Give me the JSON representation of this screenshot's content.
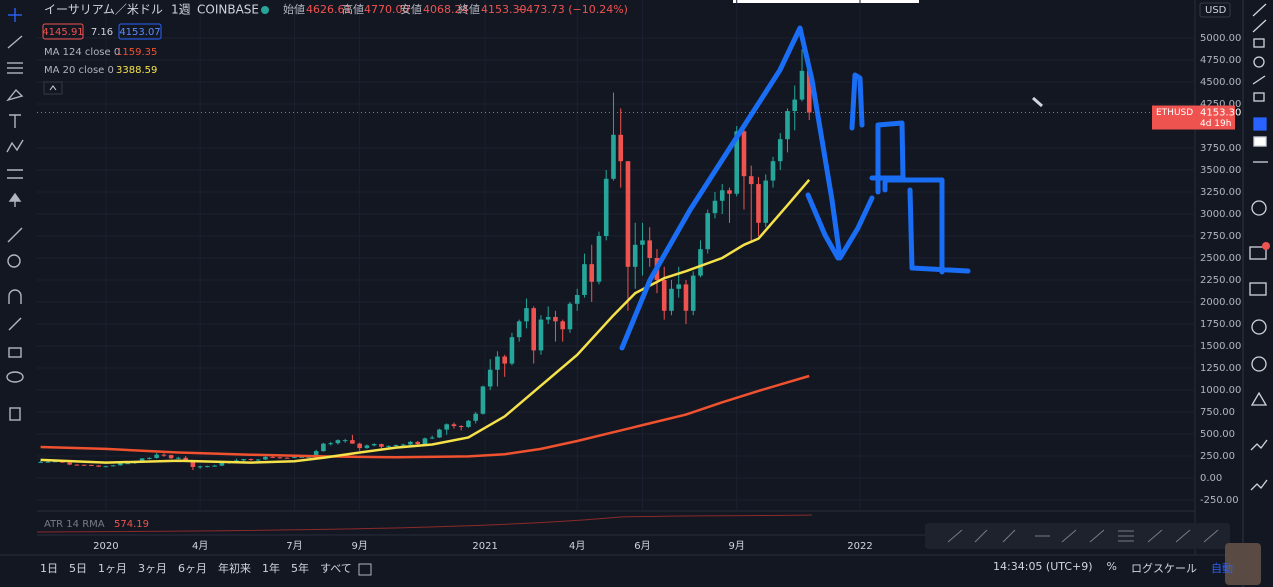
{
  "header": {
    "symbol": "イーサリアム／米ドル",
    "interval": "1週",
    "exchange": "COINBASE",
    "open_label": "始値",
    "open": "4626.61",
    "high_label": "高値",
    "high": "4770.00",
    "low_label": "安値",
    "low": "4068.24",
    "close_label": "終値",
    "close": "4153.30",
    "change": "−473.73 (−10.24%)",
    "bid": "4145.91",
    "spread": "7.16",
    "ask": "4153.07"
  },
  "chart_data": {
    "type": "candlestick",
    "grid": true,
    "xlim": [
      -9.5,
      150.2
    ],
    "xticks": [
      {
        "value": 0,
        "label": "2020"
      },
      {
        "value": 13,
        "label": "4月"
      },
      {
        "value": 26,
        "label": "7月"
      },
      {
        "value": 35,
        "label": "9月"
      },
      {
        "value": 52.3,
        "label": "2021"
      },
      {
        "value": 65,
        "label": "4月"
      },
      {
        "value": 74,
        "label": "6月"
      },
      {
        "value": 87,
        "label": "9月"
      },
      {
        "value": 104,
        "label": "2022"
      }
    ],
    "ylim": [
      -364,
      5432
    ],
    "yticks": [
      {
        "value": 5000,
        "label": "5000.00"
      },
      {
        "value": 4750,
        "label": "4750.00"
      },
      {
        "value": 4500,
        "label": "4500.00"
      },
      {
        "value": 4250,
        "label": "4250.00"
      },
      {
        "value": 3750,
        "label": "3750.00"
      },
      {
        "value": 3500,
        "label": "3500.00"
      },
      {
        "value": 3250,
        "label": "3250.00"
      },
      {
        "value": 3000,
        "label": "3000.00"
      },
      {
        "value": 2750,
        "label": "2750.00"
      },
      {
        "value": 2500,
        "label": "2500.00"
      },
      {
        "value": 2250,
        "label": "2250.00"
      },
      {
        "value": 2000,
        "label": "2000.00"
      },
      {
        "value": 1750,
        "label": "1750.00"
      },
      {
        "value": 1500,
        "label": "1500.00"
      },
      {
        "value": 1250,
        "label": "1250.00"
      },
      {
        "value": 1000,
        "label": "1000.00"
      },
      {
        "value": 750,
        "label": "750.00"
      },
      {
        "value": 500,
        "label": "500.00"
      },
      {
        "value": 250,
        "label": "250.00"
      },
      {
        "value": 0,
        "label": "0.00"
      },
      {
        "value": -250,
        "label": "-250.00"
      }
    ],
    "candles": {
      "up_color": "#26a69a",
      "down_color": "#ef5350",
      "x": [
        -9,
        -8,
        -7,
        -6,
        -5,
        -4,
        -3,
        -2,
        -1,
        0,
        1,
        2,
        3,
        4,
        5,
        6,
        7,
        8,
        9,
        10,
        11,
        12,
        13,
        14,
        15,
        16,
        17,
        18,
        19,
        20,
        21,
        22,
        23,
        24,
        25,
        26,
        27,
        28,
        29,
        30,
        31,
        32,
        33,
        34,
        35,
        36,
        37,
        38,
        39,
        40,
        41,
        42,
        43,
        44,
        45,
        46,
        47,
        48,
        49,
        50,
        51,
        52,
        53,
        54,
        55,
        56,
        57,
        58,
        59,
        60,
        61,
        62,
        63,
        64,
        65,
        66,
        67,
        68,
        69,
        70,
        71,
        72,
        73,
        74,
        75,
        76,
        77,
        78,
        79,
        80,
        81,
        82,
        83,
        84,
        85,
        86,
        87,
        88,
        89,
        90,
        91,
        92,
        93,
        94,
        95,
        96,
        97
      ],
      "ohlc": [
        [
          180,
          195,
          175,
          183
        ],
        [
          183,
          190,
          178,
          185
        ],
        [
          185,
          195,
          180,
          190
        ],
        [
          190,
          192,
          170,
          175
        ],
        [
          175,
          178,
          145,
          152
        ],
        [
          152,
          155,
          140,
          150
        ],
        [
          150,
          152,
          140,
          148
        ],
        [
          148,
          150,
          138,
          142
        ],
        [
          142,
          145,
          125,
          128
        ],
        [
          128,
          140,
          125,
          134
        ],
        [
          134,
          146,
          130,
          144
        ],
        [
          144,
          170,
          140,
          166
        ],
        [
          166,
          175,
          160,
          168
        ],
        [
          168,
          185,
          160,
          180
        ],
        [
          180,
          225,
          175,
          223
        ],
        [
          223,
          235,
          210,
          228
        ],
        [
          228,
          285,
          220,
          265
        ],
        [
          265,
          280,
          240,
          260
        ],
        [
          260,
          265,
          215,
          225
        ],
        [
          225,
          240,
          215,
          230
        ],
        [
          230,
          250,
          195,
          200
        ],
        [
          200,
          200,
          90,
          125
        ],
        [
          125,
          140,
          105,
          132
        ],
        [
          132,
          140,
          120,
          135
        ],
        [
          135,
          150,
          130,
          140
        ],
        [
          140,
          175,
          135,
          170
        ],
        [
          170,
          190,
          160,
          185
        ],
        [
          185,
          220,
          175,
          200
        ],
        [
          200,
          215,
          180,
          215
        ],
        [
          215,
          220,
          195,
          205
        ],
        [
          205,
          215,
          190,
          210
        ],
        [
          210,
          245,
          205,
          240
        ],
        [
          240,
          250,
          230,
          235
        ],
        [
          235,
          240,
          220,
          230
        ],
        [
          230,
          235,
          220,
          228
        ],
        [
          228,
          245,
          225,
          240
        ],
        [
          240,
          245,
          235,
          240
        ],
        [
          240,
          245,
          230,
          240
        ],
        [
          240,
          320,
          238,
          305
        ],
        [
          305,
          400,
          300,
          390
        ],
        [
          390,
          410,
          370,
          395
        ],
        [
          395,
          440,
          380,
          430
        ],
        [
          430,
          445,
          400,
          430
        ],
        [
          430,
          490,
          390,
          390
        ],
        [
          390,
          400,
          310,
          340
        ],
        [
          340,
          380,
          330,
          370
        ],
        [
          370,
          395,
          360,
          385
        ],
        [
          385,
          390,
          330,
          355
        ],
        [
          355,
          370,
          340,
          365
        ],
        [
          365,
          380,
          350,
          375
        ],
        [
          375,
          390,
          360,
          380
        ],
        [
          380,
          420,
          375,
          410
        ],
        [
          410,
          420,
          370,
          385
        ],
        [
          385,
          460,
          380,
          450
        ],
        [
          450,
          480,
          440,
          460
        ],
        [
          460,
          560,
          455,
          550
        ],
        [
          550,
          620,
          490,
          610
        ],
        [
          610,
          630,
          560,
          590
        ],
        [
          590,
          600,
          540,
          580
        ],
        [
          580,
          660,
          570,
          650
        ],
        [
          650,
          750,
          620,
          730
        ],
        [
          730,
          1050,
          720,
          1040
        ],
        [
          1040,
          1350,
          1000,
          1230
        ],
        [
          1230,
          1440,
          1040,
          1380
        ],
        [
          1380,
          1400,
          1150,
          1300
        ],
        [
          1300,
          1650,
          1280,
          1600
        ],
        [
          1600,
          1800,
          1550,
          1780
        ],
        [
          1780,
          2040,
          1700,
          1930
        ],
        [
          1930,
          1950,
          1300,
          1450
        ],
        [
          1450,
          1850,
          1400,
          1800
        ],
        [
          1800,
          1950,
          1750,
          1830
        ],
        [
          1830,
          1900,
          1550,
          1780
        ],
        [
          1780,
          1800,
          1550,
          1690
        ],
        [
          1690,
          2000,
          1650,
          1980
        ],
        [
          1980,
          2150,
          1900,
          2080
        ],
        [
          2080,
          2550,
          2050,
          2430
        ],
        [
          2430,
          2650,
          2000,
          2230
        ],
        [
          2230,
          2800,
          2200,
          2750
        ],
        [
          2750,
          3500,
          2700,
          3400
        ],
        [
          3400,
          4380,
          3380,
          3900
        ],
        [
          3900,
          4200,
          3300,
          3600
        ],
        [
          3600,
          3600,
          1900,
          2400
        ],
        [
          2400,
          2900,
          2150,
          2650
        ],
        [
          2650,
          2900,
          2300,
          2700
        ],
        [
          2700,
          2850,
          2400,
          2500
        ],
        [
          2500,
          2600,
          2100,
          2250
        ],
        [
          2250,
          2400,
          1800,
          1900
        ],
        [
          1900,
          2250,
          1850,
          2150
        ],
        [
          2150,
          2400,
          2050,
          2200
        ],
        [
          2200,
          2250,
          1750,
          1900
        ],
        [
          1900,
          2350,
          1850,
          2300
        ],
        [
          2300,
          2700,
          2280,
          2600
        ],
        [
          2600,
          3050,
          2550,
          3010
        ],
        [
          3010,
          3250,
          2950,
          3150
        ],
        [
          3150,
          3340,
          3000,
          3270
        ],
        [
          3270,
          3300,
          2900,
          3230
        ],
        [
          3230,
          4000,
          3200,
          3940
        ],
        [
          3940,
          4020,
          3050,
          3430
        ],
        [
          3430,
          3550,
          2700,
          3340
        ],
        [
          3340,
          3420,
          2750,
          2900
        ],
        [
          2900,
          3450,
          2850,
          3380
        ],
        [
          3380,
          3650,
          3300,
          3600
        ],
        [
          3600,
          3920,
          3500,
          3850
        ],
        [
          3850,
          4200,
          3700,
          4170
        ],
        [
          4170,
          4460,
          3950,
          4300
        ],
        [
          4300,
          4870,
          4280,
          4626.61
        ],
        [
          4626.61,
          4770,
          4068.24,
          4153.3
        ]
      ]
    },
    "lines": [
      {
        "name": "MA 124 close 0",
        "color": "#f0512f",
        "x": [
          -9,
          0,
          10,
          20,
          30,
          40,
          50,
          55,
          60,
          65,
          70,
          75,
          80,
          85,
          90,
          97
        ],
        "values": [
          352,
          330,
          290,
          265,
          245,
          235,
          245,
          270,
          330,
          420,
          520,
          620,
          720,
          860,
          990,
          1159.35
        ]
      },
      {
        "name": "MA 20 close 0",
        "color": "#f5e14a",
        "x": [
          -9,
          0,
          10,
          20,
          26,
          30,
          35,
          40,
          45,
          50,
          55,
          60,
          65,
          70,
          73,
          77,
          80,
          85,
          88,
          90,
          94,
          97
        ],
        "values": [
          205,
          175,
          195,
          175,
          190,
          230,
          290,
          345,
          380,
          460,
          700,
          1050,
          1400,
          1850,
          2100,
          2270,
          2350,
          2500,
          2650,
          2720,
          3100,
          3388.59
        ]
      }
    ]
  },
  "price_axis": {
    "currency": "USD"
  },
  "last_price": {
    "symbol": "ETHUSD",
    "price": "4153.30",
    "countdown": "4d 19h"
  },
  "indicator": {
    "name": "ATR 14 RMA",
    "value": "574.19"
  },
  "range_buttons": [
    "1日",
    "5日",
    "1ヶ月",
    "3ヶ月",
    "6ヶ月",
    "年初来",
    "1年",
    "5年",
    "すべて"
  ],
  "footer": {
    "time": "14:34:05 (UTC+9)",
    "percent": "%",
    "log": "ログスケール",
    "auto": "自動"
  }
}
